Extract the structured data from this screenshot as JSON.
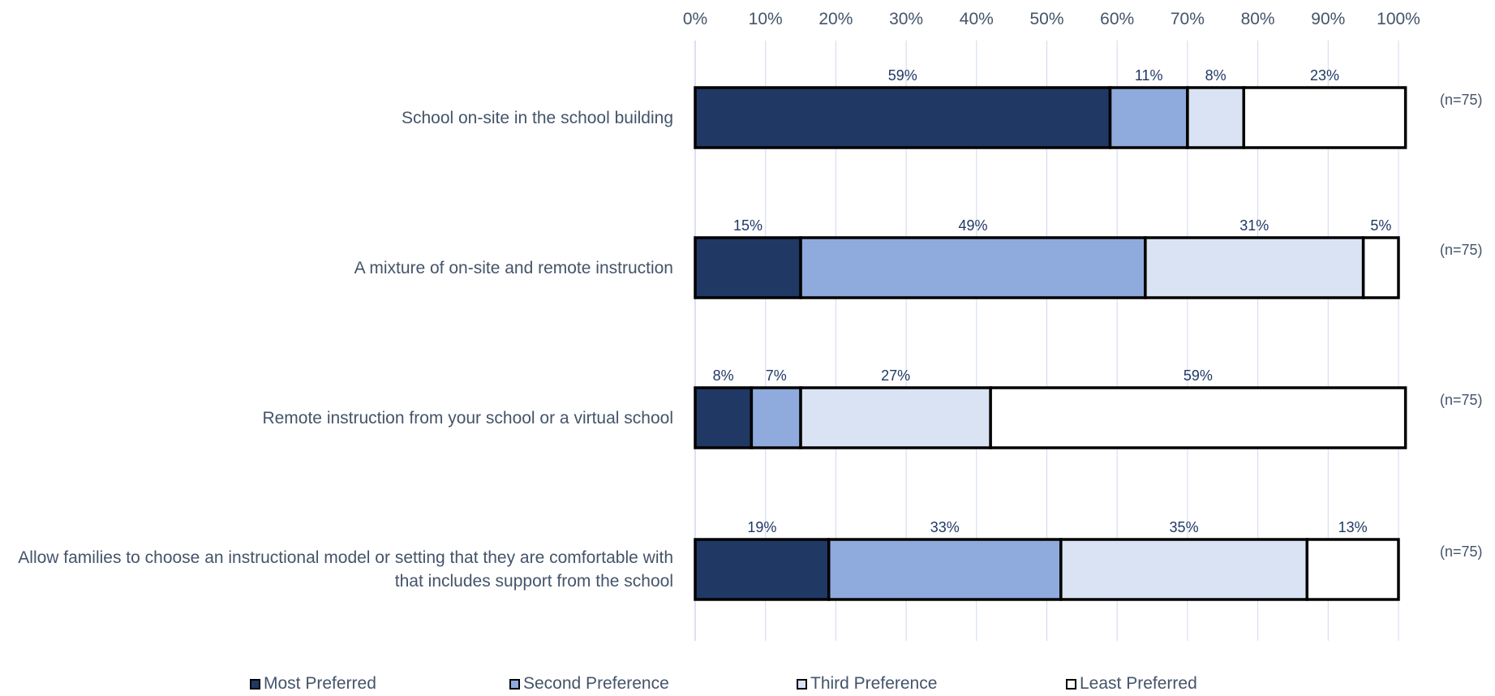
{
  "chart_data": {
    "type": "bar",
    "orientation": "horizontal",
    "stacked": true,
    "x_ticks": [
      "0%",
      "10%",
      "20%",
      "30%",
      "40%",
      "50%",
      "60%",
      "70%",
      "80%",
      "90%",
      "100%"
    ],
    "xlim": [
      0,
      100
    ],
    "grid": true,
    "legend_position": "bottom",
    "categories": [
      "School on-site in the school building",
      "A mixture of on-site and remote instruction",
      "Remote instruction from your school or a virtual school",
      "Allow families to choose an instructional model or setting that they are comfortable with that includes support from the school"
    ],
    "sample_sizes": [
      "(n=75)",
      "(n=75)",
      "(n=75)",
      "(n=75)"
    ],
    "series": [
      {
        "name": "Most Preferred",
        "color": "#203864",
        "values": [
          59,
          15,
          8,
          19
        ]
      },
      {
        "name": "Second Preference",
        "color": "#8faadc",
        "values": [
          11,
          49,
          7,
          33
        ]
      },
      {
        "name": "Third Preference",
        "color": "#dae3f3",
        "values": [
          8,
          31,
          27,
          35
        ]
      },
      {
        "name": "Least Preferred",
        "color": "#ffffff",
        "values": [
          23,
          5,
          59,
          13
        ]
      }
    ],
    "label_color": "#203864"
  }
}
